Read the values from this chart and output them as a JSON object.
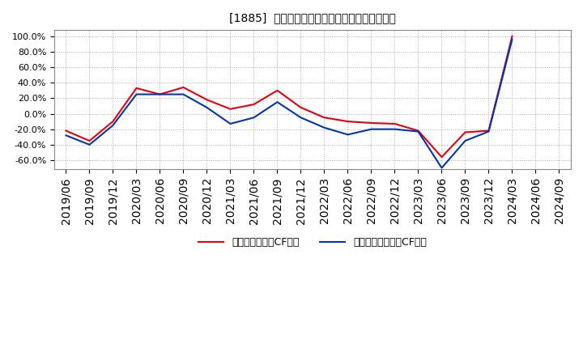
{
  "title": "[1885]  有利子負債キャッシュフロー比率の推移",
  "legend_labels": [
    "有利子負債営業CF比率",
    "有利子負債フリーCF比率"
  ],
  "x_labels": [
    "2019/06",
    "2019/09",
    "2019/12",
    "2020/03",
    "2020/06",
    "2020/09",
    "2020/12",
    "2021/03",
    "2021/06",
    "2021/09",
    "2021/12",
    "2022/03",
    "2022/06",
    "2022/09",
    "2022/12",
    "2023/03",
    "2023/06",
    "2023/09",
    "2023/12",
    "2024/03",
    "2024/06",
    "2024/09"
  ],
  "red_values": [
    -0.22,
    -0.35,
    -0.1,
    0.33,
    0.25,
    0.34,
    0.18,
    0.06,
    0.12,
    0.3,
    0.08,
    -0.05,
    -0.1,
    -0.12,
    -0.13,
    -0.22,
    -0.56,
    -0.24,
    -0.22,
    1.0,
    null,
    null
  ],
  "blue_values": [
    -0.28,
    -0.4,
    -0.15,
    0.25,
    0.25,
    0.25,
    0.08,
    -0.13,
    -0.05,
    0.15,
    -0.05,
    -0.18,
    -0.27,
    -0.2,
    -0.2,
    -0.23,
    -0.7,
    -0.35,
    -0.23,
    0.96,
    null,
    null
  ],
  "ylim": [
    -0.72,
    1.08
  ],
  "yticks": [
    -0.6,
    -0.4,
    -0.2,
    0.0,
    0.2,
    0.4,
    0.6,
    0.8,
    1.0
  ],
  "red_color": "#e8000d",
  "blue_color": "#0035ad",
  "background_color": "#ffffff",
  "plot_bg_color": "#ffffff",
  "grid_color": "#aaaaaa",
  "title_fontsize": 12,
  "legend_fontsize": 9,
  "tick_fontsize": 8
}
